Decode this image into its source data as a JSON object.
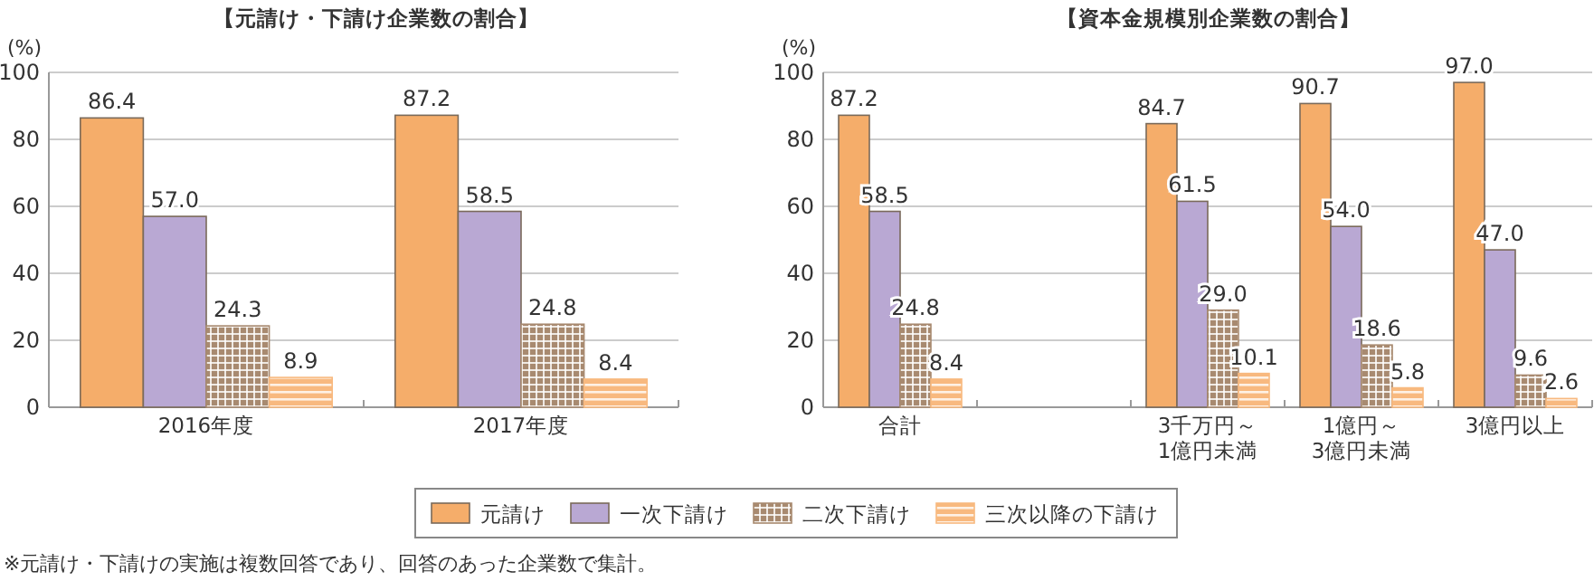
{
  "chart_data": [
    {
      "type": "bar",
      "title": "【元請け・下請け企業数の割合】",
      "ylabel": "(%)",
      "categories": [
        "2016年度",
        "2017年度"
      ],
      "series": [
        {
          "name": "元請け",
          "color": "#f5ad6a",
          "values": [
            86.4,
            87.2
          ],
          "value_labels": [
            "86.4",
            "87.2"
          ]
        },
        {
          "name": "一次下請け",
          "color": "#b9a8d3",
          "values": [
            57.0,
            58.5
          ],
          "value_labels": [
            "57.0",
            "58.5"
          ]
        },
        {
          "name": "二次下請け",
          "color": "#a88a70",
          "values": [
            24.3,
            24.8
          ],
          "value_labels": [
            "24.3",
            "24.8"
          ]
        },
        {
          "name": "三次以降の下請け",
          "color": "#f8b97f",
          "values": [
            8.9,
            8.4
          ],
          "value_labels": [
            "8.9",
            "8.4"
          ]
        }
      ],
      "ylim": [
        0,
        100
      ],
      "yticks": [
        0,
        20,
        40,
        60,
        80,
        100
      ],
      "grid": "y",
      "legend": "bottom",
      "annotations": [
        "※元請け・下請けの実施は複数回答であり、回答のあった企業数で集計。"
      ]
    },
    {
      "type": "bar",
      "title": "【資本金規模別企業数の割合】",
      "ylabel": "(%)",
      "categories": [
        "合計",
        null,
        "3千万円～\n1億円未満",
        "1億円～\n3億円未満",
        "3億円以上"
      ],
      "series": [
        {
          "color": "#f5ad6a",
          "values": [
            87.2,
            null,
            84.7,
            90.7,
            97.0
          ],
          "value_labels": [
            "87.2",
            null,
            "84.7",
            "90.7",
            "97.0"
          ]
        },
        {
          "color": "#b9a8d3",
          "values": [
            58.5,
            null,
            61.5,
            54.0,
            47.0
          ],
          "value_labels": [
            "58.5",
            null,
            "61.5",
            "54.0",
            "47.0"
          ]
        },
        {
          "color": "#a88a70",
          "values": [
            24.8,
            null,
            29.0,
            18.6,
            9.6
          ],
          "value_labels": [
            "24.8",
            null,
            "29.0",
            "18.6",
            "9.6"
          ]
        },
        {
          "color": "#f8b97f",
          "values": [
            8.4,
            null,
            10.1,
            5.8,
            2.6
          ],
          "value_labels": [
            "8.4",
            null,
            "10.1",
            "5.8",
            "2.6"
          ]
        }
      ],
      "ylim": [
        0,
        100
      ],
      "yticks": [
        0,
        20,
        40,
        60,
        80,
        100
      ],
      "grid": "y"
    }
  ]
}
